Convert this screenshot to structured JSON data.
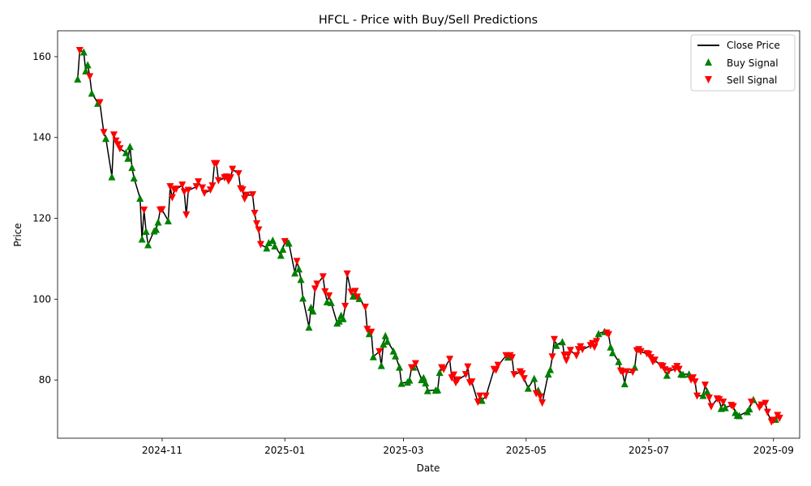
{
  "chart_data": {
    "type": "line",
    "title": "HFCL - Price with Buy/Sell Predictions",
    "xlabel": "Date",
    "ylabel": "Price",
    "x_range": [
      "2024-09-10",
      "2025-09-14"
    ],
    "ylim": [
      65.6,
      166.4
    ],
    "x_ticks": [
      {
        "date": "2024-11-01",
        "label": "2024-11"
      },
      {
        "date": "2025-01-01",
        "label": "2025-01"
      },
      {
        "date": "2025-03-01",
        "label": "2025-03"
      },
      {
        "date": "2025-05-01",
        "label": "2025-05"
      },
      {
        "date": "2025-07-01",
        "label": "2025-07"
      },
      {
        "date": "2025-09-01",
        "label": "2025-09"
      }
    ],
    "y_ticks": [
      80,
      100,
      120,
      140,
      160
    ],
    "grid": false,
    "legend_position": "top-right",
    "colors": {
      "close": "#000000",
      "buy": "#008000",
      "sell": "#ff0000"
    },
    "series": [
      {
        "name": "Close Price",
        "kind": "line"
      },
      {
        "name": "Buy Signal",
        "kind": "marker-up"
      },
      {
        "name": "Sell Signal",
        "kind": "marker-down"
      }
    ],
    "points": [
      [
        "2024-09-20",
        154.5,
        "b"
      ],
      [
        "2024-09-21",
        161.5,
        "s"
      ],
      [
        "2024-09-23",
        161.2,
        "b"
      ],
      [
        "2024-09-24",
        156.5,
        "b"
      ],
      [
        "2024-09-25",
        158.0,
        "b"
      ],
      [
        "2024-09-26",
        155.0,
        "s"
      ],
      [
        "2024-09-27",
        151.0,
        "b"
      ],
      [
        "2024-09-30",
        148.5,
        "b"
      ],
      [
        "2024-10-01",
        148.6,
        "s"
      ],
      [
        "2024-10-03",
        141.2,
        "s"
      ],
      [
        "2024-10-04",
        139.8,
        "b"
      ],
      [
        "2024-10-07",
        130.3,
        "b"
      ],
      [
        "2024-10-08",
        140.6,
        "s"
      ],
      [
        "2024-10-09",
        139.1,
        "s"
      ],
      [
        "2024-10-10",
        138.2,
        "s"
      ],
      [
        "2024-10-11",
        137.2,
        "s"
      ],
      [
        "2024-10-14",
        136.3,
        "b"
      ],
      [
        "2024-10-15",
        134.9,
        "b"
      ],
      [
        "2024-10-16",
        137.8,
        "b"
      ],
      [
        "2024-10-17",
        132.6,
        "b"
      ],
      [
        "2024-10-18",
        130.0,
        "b"
      ],
      [
        "2024-10-21",
        125.0,
        "b"
      ],
      [
        "2024-10-22",
        114.9,
        "b"
      ],
      [
        "2024-10-23",
        122.0,
        "s"
      ],
      [
        "2024-10-24",
        116.8,
        "b"
      ],
      [
        "2024-10-25",
        113.5,
        "b"
      ],
      [
        "2024-10-28",
        116.9,
        "b"
      ],
      [
        "2024-10-29",
        117.3,
        "b"
      ],
      [
        "2024-10-30",
        119.1,
        "b"
      ],
      [
        "2024-10-31",
        122.0,
        "s"
      ],
      [
        "2024-11-01",
        122.1,
        "s"
      ],
      [
        "2024-11-04",
        119.4,
        "b"
      ],
      [
        "2024-11-05",
        127.8,
        "s"
      ],
      [
        "2024-11-06",
        125.1,
        "s"
      ],
      [
        "2024-11-07",
        127.0,
        "s"
      ],
      [
        "2024-11-08",
        127.2,
        "s"
      ],
      [
        "2024-11-11",
        128.2,
        "s"
      ],
      [
        "2024-11-12",
        126.5,
        "s"
      ],
      [
        "2024-11-13",
        120.8,
        "s"
      ],
      [
        "2024-11-14",
        126.9,
        "s"
      ],
      [
        "2024-11-18",
        127.8,
        "s"
      ],
      [
        "2024-11-19",
        129.0,
        "s"
      ],
      [
        "2024-11-21",
        127.5,
        "s"
      ],
      [
        "2024-11-22",
        126.2,
        "s"
      ],
      [
        "2024-11-25",
        127.0,
        "s"
      ],
      [
        "2024-11-26",
        128.0,
        "s"
      ],
      [
        "2024-11-27",
        133.5,
        "s"
      ],
      [
        "2024-11-28",
        133.5,
        "s"
      ],
      [
        "2024-11-29",
        129.3,
        "s"
      ],
      [
        "2024-12-02",
        130.0,
        "s"
      ],
      [
        "2024-12-03",
        130.2,
        "s"
      ],
      [
        "2024-12-04",
        129.2,
        "s"
      ],
      [
        "2024-12-05",
        130.0,
        "s"
      ],
      [
        "2024-12-06",
        132.1,
        "s"
      ],
      [
        "2024-12-09",
        131.0,
        "s"
      ],
      [
        "2024-12-10",
        127.3,
        "s"
      ],
      [
        "2024-12-11",
        127.0,
        "s"
      ],
      [
        "2024-12-12",
        124.8,
        "s"
      ],
      [
        "2024-12-13",
        125.7,
        "s"
      ],
      [
        "2024-12-16",
        125.8,
        "s"
      ],
      [
        "2024-12-17",
        121.2,
        "s"
      ],
      [
        "2024-12-18",
        118.6,
        "s"
      ],
      [
        "2024-12-19",
        117.1,
        "s"
      ],
      [
        "2024-12-20",
        113.5,
        "s"
      ],
      [
        "2024-12-23",
        112.7,
        "b"
      ],
      [
        "2024-12-24",
        114.0,
        "b"
      ],
      [
        "2024-12-26",
        114.6,
        "b"
      ],
      [
        "2024-12-27",
        113.2,
        "b"
      ],
      [
        "2024-12-30",
        110.9,
        "b"
      ],
      [
        "2024-12-31",
        112.4,
        "b"
      ],
      [
        "2025-01-01",
        114.2,
        "s"
      ],
      [
        "2025-01-02",
        114.4,
        "b"
      ],
      [
        "2025-01-03",
        113.9,
        "b"
      ],
      [
        "2025-01-06",
        106.5,
        "b"
      ],
      [
        "2025-01-07",
        109.3,
        "s"
      ],
      [
        "2025-01-08",
        107.5,
        "b"
      ],
      [
        "2025-01-09",
        104.9,
        "b"
      ],
      [
        "2025-01-10",
        100.3,
        "b"
      ],
      [
        "2025-01-13",
        93.1,
        "b"
      ],
      [
        "2025-01-14",
        98.0,
        "b"
      ],
      [
        "2025-01-15",
        97.1,
        "b"
      ],
      [
        "2025-01-16",
        102.5,
        "s"
      ],
      [
        "2025-01-17",
        103.7,
        "s"
      ],
      [
        "2025-01-20",
        105.5,
        "s"
      ],
      [
        "2025-01-21",
        101.8,
        "s"
      ],
      [
        "2025-01-22",
        99.4,
        "b"
      ],
      [
        "2025-01-23",
        100.8,
        "s"
      ],
      [
        "2025-01-24",
        99.2,
        "b"
      ],
      [
        "2025-01-27",
        94.1,
        "b"
      ],
      [
        "2025-01-28",
        94.6,
        "b"
      ],
      [
        "2025-01-29",
        96.0,
        "b"
      ],
      [
        "2025-01-30",
        95.2,
        "b"
      ],
      [
        "2025-01-31",
        98.2,
        "s"
      ],
      [
        "2025-02-01",
        106.2,
        "s"
      ],
      [
        "2025-02-03",
        101.7,
        "s"
      ],
      [
        "2025-02-04",
        100.8,
        "b"
      ],
      [
        "2025-02-05",
        101.9,
        "s"
      ],
      [
        "2025-02-06",
        100.5,
        "s"
      ],
      [
        "2025-02-07",
        100.2,
        "b"
      ],
      [
        "2025-02-10",
        98.0,
        "s"
      ],
      [
        "2025-02-11",
        92.5,
        "s"
      ],
      [
        "2025-02-12",
        91.5,
        "b"
      ],
      [
        "2025-02-13",
        91.8,
        "s"
      ],
      [
        "2025-02-14",
        85.8,
        "b"
      ],
      [
        "2025-02-17",
        87.0,
        "s"
      ],
      [
        "2025-02-18",
        83.6,
        "b"
      ],
      [
        "2025-02-19",
        88.9,
        "b"
      ],
      [
        "2025-02-20",
        91.0,
        "b"
      ],
      [
        "2025-02-21",
        89.6,
        "b"
      ],
      [
        "2025-02-24",
        87.2,
        "b"
      ],
      [
        "2025-02-25",
        86.0,
        "b"
      ],
      [
        "2025-02-27",
        83.2,
        "b"
      ],
      [
        "2025-02-28",
        79.2,
        "b"
      ],
      [
        "2025-03-03",
        79.5,
        "b"
      ],
      [
        "2025-03-04",
        80.0,
        "b"
      ],
      [
        "2025-03-05",
        83.0,
        "s"
      ],
      [
        "2025-03-06",
        83.2,
        "b"
      ],
      [
        "2025-03-07",
        84.0,
        "s"
      ],
      [
        "2025-03-10",
        80.1,
        "b"
      ],
      [
        "2025-03-11",
        80.6,
        "b"
      ],
      [
        "2025-03-12",
        79.3,
        "b"
      ],
      [
        "2025-03-13",
        77.4,
        "b"
      ],
      [
        "2025-03-17",
        77.5,
        "b"
      ],
      [
        "2025-03-18",
        77.6,
        "b"
      ],
      [
        "2025-03-19",
        81.9,
        "b"
      ],
      [
        "2025-03-20",
        83.0,
        "s"
      ],
      [
        "2025-03-21",
        82.6,
        "s"
      ],
      [
        "2025-03-24",
        85.1,
        "s"
      ],
      [
        "2025-03-25",
        80.5,
        "s"
      ],
      [
        "2025-03-26",
        81.2,
        "s"
      ],
      [
        "2025-03-27",
        79.3,
        "s"
      ],
      [
        "2025-03-28",
        80.0,
        "s"
      ],
      [
        "2025-04-01",
        81.3,
        "s"
      ],
      [
        "2025-04-02",
        83.2,
        "s"
      ],
      [
        "2025-04-03",
        79.3,
        "s"
      ],
      [
        "2025-04-04",
        79.5,
        "s"
      ],
      [
        "2025-04-07",
        74.5,
        "s"
      ],
      [
        "2025-04-08",
        76.0,
        "s"
      ],
      [
        "2025-04-09",
        75.0,
        "b"
      ],
      [
        "2025-04-11",
        76.0,
        "s"
      ],
      [
        "2025-04-15",
        82.6,
        "s"
      ],
      [
        "2025-04-16",
        82.4,
        "s"
      ],
      [
        "2025-04-17",
        83.6,
        "s"
      ],
      [
        "2025-04-21",
        86.0,
        "s"
      ],
      [
        "2025-04-22",
        85.7,
        "b"
      ],
      [
        "2025-04-23",
        86.0,
        "s"
      ],
      [
        "2025-04-24",
        85.5,
        "s"
      ],
      [
        "2025-04-25",
        81.3,
        "s"
      ],
      [
        "2025-04-28",
        82.0,
        "s"
      ],
      [
        "2025-04-29",
        81.5,
        "s"
      ],
      [
        "2025-04-30",
        80.3,
        "s"
      ],
      [
        "2025-05-02",
        78.0,
        "b"
      ],
      [
        "2025-05-05",
        80.4,
        "b"
      ],
      [
        "2025-05-06",
        76.6,
        "s"
      ],
      [
        "2025-05-07",
        77.5,
        "b"
      ],
      [
        "2025-05-08",
        75.8,
        "s"
      ],
      [
        "2025-05-09",
        74.3,
        "s"
      ],
      [
        "2025-05-12",
        81.5,
        "b"
      ],
      [
        "2025-05-13",
        82.6,
        "b"
      ],
      [
        "2025-05-14",
        85.7,
        "s"
      ],
      [
        "2025-05-15",
        90.0,
        "s"
      ],
      [
        "2025-05-16",
        88.6,
        "b"
      ],
      [
        "2025-05-19",
        89.5,
        "b"
      ],
      [
        "2025-05-20",
        86.1,
        "s"
      ],
      [
        "2025-05-21",
        84.8,
        "s"
      ],
      [
        "2025-05-22",
        86.2,
        "s"
      ],
      [
        "2025-05-23",
        87.3,
        "s"
      ],
      [
        "2025-05-26",
        86.0,
        "s"
      ],
      [
        "2025-05-27",
        87.5,
        "s"
      ],
      [
        "2025-05-28",
        88.2,
        "s"
      ],
      [
        "2025-05-29",
        87.5,
        "s"
      ],
      [
        "2025-06-02",
        88.5,
        "s"
      ],
      [
        "2025-06-03",
        89.0,
        "s"
      ],
      [
        "2025-06-04",
        88.1,
        "s"
      ],
      [
        "2025-06-05",
        89.5,
        "s"
      ],
      [
        "2025-06-06",
        91.5,
        "b"
      ],
      [
        "2025-06-09",
        92.0,
        "b"
      ],
      [
        "2025-06-10",
        91.6,
        "s"
      ],
      [
        "2025-06-11",
        91.2,
        "s"
      ],
      [
        "2025-06-12",
        88.2,
        "b"
      ],
      [
        "2025-06-13",
        86.8,
        "b"
      ],
      [
        "2025-06-16",
        84.6,
        "b"
      ],
      [
        "2025-06-17",
        82.2,
        "s"
      ],
      [
        "2025-06-18",
        81.8,
        "s"
      ],
      [
        "2025-06-19",
        79.1,
        "b"
      ],
      [
        "2025-06-20",
        82.0,
        "s"
      ],
      [
        "2025-06-23",
        81.9,
        "s"
      ],
      [
        "2025-06-24",
        83.2,
        "b"
      ],
      [
        "2025-06-25",
        87.2,
        "s"
      ],
      [
        "2025-06-26",
        87.5,
        "s"
      ],
      [
        "2025-06-27",
        87.0,
        "s"
      ],
      [
        "2025-06-30",
        86.5,
        "s"
      ],
      [
        "2025-07-01",
        86.3,
        "s"
      ],
      [
        "2025-07-02",
        85.5,
        "s"
      ],
      [
        "2025-07-03",
        84.5,
        "s"
      ],
      [
        "2025-07-04",
        84.9,
        "s"
      ],
      [
        "2025-07-07",
        83.5,
        "s"
      ],
      [
        "2025-07-08",
        83.3,
        "s"
      ],
      [
        "2025-07-09",
        82.5,
        "s"
      ],
      [
        "2025-07-10",
        81.2,
        "b"
      ],
      [
        "2025-07-11",
        82.2,
        "s"
      ],
      [
        "2025-07-14",
        82.7,
        "s"
      ],
      [
        "2025-07-15",
        83.3,
        "s"
      ],
      [
        "2025-07-16",
        82.6,
        "s"
      ],
      [
        "2025-07-17",
        81.5,
        "b"
      ],
      [
        "2025-07-18",
        81.4,
        "b"
      ],
      [
        "2025-07-21",
        81.5,
        "b"
      ],
      [
        "2025-07-22",
        80.0,
        "s"
      ],
      [
        "2025-07-23",
        80.5,
        "s"
      ],
      [
        "2025-07-24",
        79.5,
        "s"
      ],
      [
        "2025-07-25",
        76.0,
        "s"
      ],
      [
        "2025-07-28",
        76.2,
        "b"
      ],
      [
        "2025-07-29",
        78.7,
        "s"
      ],
      [
        "2025-07-30",
        77.2,
        "b"
      ],
      [
        "2025-07-31",
        75.5,
        "s"
      ],
      [
        "2025-08-01",
        73.4,
        "s"
      ],
      [
        "2025-08-04",
        75.3,
        "s"
      ],
      [
        "2025-08-05",
        75.1,
        "s"
      ],
      [
        "2025-08-06",
        73.0,
        "b"
      ],
      [
        "2025-08-07",
        74.5,
        "s"
      ],
      [
        "2025-08-08",
        73.2,
        "b"
      ],
      [
        "2025-08-11",
        73.7,
        "s"
      ],
      [
        "2025-08-12",
        73.4,
        "s"
      ],
      [
        "2025-08-13",
        72.0,
        "b"
      ],
      [
        "2025-08-14",
        71.3,
        "b"
      ],
      [
        "2025-08-15",
        71.2,
        "b"
      ],
      [
        "2025-08-19",
        72.2,
        "b"
      ],
      [
        "2025-08-20",
        72.9,
        "b"
      ],
      [
        "2025-08-21",
        74.5,
        "s"
      ],
      [
        "2025-08-22",
        75.2,
        "b"
      ],
      [
        "2025-08-25",
        73.2,
        "s"
      ],
      [
        "2025-08-26",
        73.8,
        "s"
      ],
      [
        "2025-08-28",
        74.2,
        "s"
      ],
      [
        "2025-08-29",
        72.0,
        "s"
      ],
      [
        "2025-08-31",
        69.6,
        "s"
      ],
      [
        "2025-09-01",
        70.0,
        "s"
      ],
      [
        "2025-09-02",
        70.3,
        "b"
      ],
      [
        "2025-09-03",
        71.2,
        "s"
      ],
      [
        "2025-09-04",
        70.5,
        "s"
      ]
    ]
  }
}
